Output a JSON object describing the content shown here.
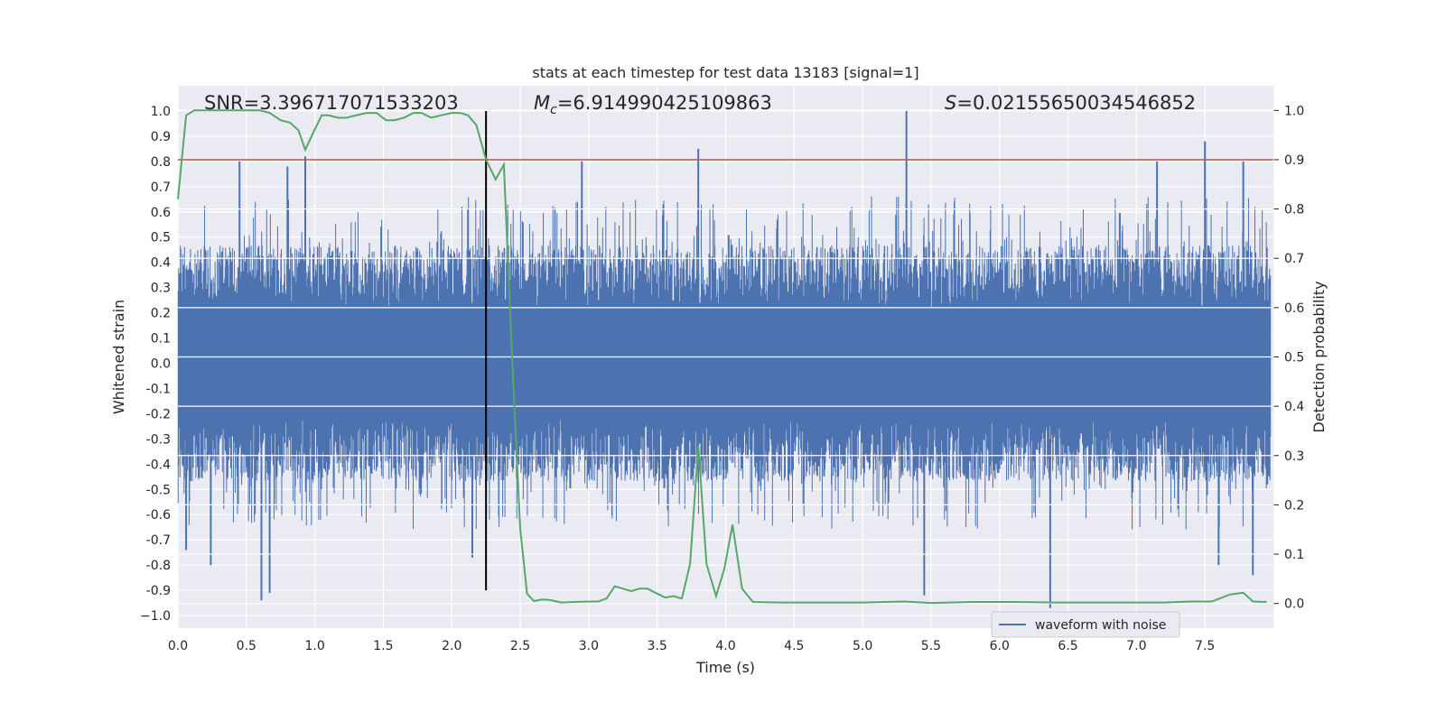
{
  "chart_data": {
    "type": "line",
    "title": "stats at each timestep for test data 13183 [signal=1]",
    "xlabel": "Time (s)",
    "ylabel": "Whitened strain",
    "y2label": "Detection probability",
    "xlim": [
      0,
      8
    ],
    "ylim": [
      -1.05,
      1.1
    ],
    "y2lim": [
      -0.05,
      1.05
    ],
    "x_ticks": [
      0.0,
      0.5,
      1.0,
      1.5,
      2.0,
      2.5,
      3.0,
      3.5,
      4.0,
      4.5,
      5.0,
      5.5,
      6.0,
      6.5,
      7.0,
      7.5
    ],
    "x_tick_labels": [
      "0.0",
      "0.5",
      "1.0",
      "1.5",
      "2.0",
      "2.5",
      "3.0",
      "3.5",
      "4.0",
      "4.5",
      "5.0",
      "5.5",
      "6.0",
      "6.5",
      "7.0",
      "7.5"
    ],
    "y_ticks": [
      1.0,
      0.9,
      0.8,
      0.7,
      0.6,
      0.5,
      0.4,
      0.3,
      0.2,
      0.1,
      0.0,
      -0.1,
      -0.2,
      -0.3,
      -0.4,
      -0.5,
      -0.6,
      -0.7,
      -0.8,
      -0.9,
      -1.0
    ],
    "y_tick_labels": [
      "1.0",
      "0.9",
      "0.8",
      "0.7",
      "0.6",
      "0.5",
      "0.4",
      "0.3",
      "0.2",
      "0.1",
      "0.0",
      "-0.1",
      "-0.2",
      "-0.3",
      "-0.4",
      "-0.5",
      "-0.6",
      "-0.7",
      "-0.8",
      "-0.9",
      "−1.0"
    ],
    "y2_ticks": [
      1.0,
      0.9,
      0.8,
      0.7,
      0.6,
      0.5,
      0.4,
      0.3,
      0.2,
      0.1,
      0.0
    ],
    "y2_tick_labels": [
      "1.0",
      "0.9",
      "0.8",
      "0.7",
      "0.6",
      "0.5",
      "0.4",
      "0.3",
      "0.2",
      "0.1",
      "0.0"
    ],
    "annotations": {
      "snr": "SNR=3.396717071533203",
      "mc_symbol": "M",
      "mc_sub": "c",
      "mc_value": "=6.914990425109863",
      "s_symbol": "S",
      "s_value": "=0.021556500345468 52"
    },
    "threshold_line": {
      "axis": "y2",
      "value": 0.9,
      "color": "#c44e52"
    },
    "merger_line": {
      "x": 2.25,
      "y_from": -0.9,
      "y_to": 1.0,
      "color": "#000000"
    },
    "series": [
      {
        "name": "waveform with noise",
        "axis": "y",
        "color": "#4c72b0",
        "style": "noise",
        "envelope": 0.45,
        "notable_peaks": [
          {
            "x": 0.45,
            "y": 0.8
          },
          {
            "x": 0.8,
            "y": 0.78
          },
          {
            "x": 0.93,
            "y": 0.82
          },
          {
            "x": 2.95,
            "y": 0.8
          },
          {
            "x": 3.8,
            "y": 0.85
          },
          {
            "x": 5.32,
            "y": 1.0
          },
          {
            "x": 7.15,
            "y": 0.8
          },
          {
            "x": 7.5,
            "y": 0.88
          },
          {
            "x": 7.78,
            "y": 0.8
          }
        ],
        "notable_troughs": [
          {
            "x": 0.06,
            "y": -0.74
          },
          {
            "x": 0.24,
            "y": -0.8
          },
          {
            "x": 0.61,
            "y": -0.94
          },
          {
            "x": 0.67,
            "y": -0.91
          },
          {
            "x": 2.15,
            "y": -0.77
          },
          {
            "x": 5.45,
            "y": -0.92
          },
          {
            "x": 6.37,
            "y": -0.97
          },
          {
            "x": 7.6,
            "y": -0.8
          },
          {
            "x": 7.85,
            "y": -0.84
          }
        ]
      },
      {
        "name": "detection probability",
        "axis": "y2",
        "color": "#55a868",
        "x": [
          0.0,
          0.06,
          0.12,
          0.2,
          0.3,
          0.4,
          0.5,
          0.6,
          0.67,
          0.75,
          0.82,
          0.88,
          0.93,
          0.98,
          1.05,
          1.1,
          1.17,
          1.23,
          1.3,
          1.38,
          1.45,
          1.52,
          1.58,
          1.65,
          1.72,
          1.78,
          1.85,
          1.92,
          2.0,
          2.06,
          2.12,
          2.18,
          2.25,
          2.32,
          2.38,
          2.44,
          2.5,
          2.55,
          2.6,
          2.66,
          2.72,
          2.8,
          2.9,
          3.0,
          3.07,
          3.13,
          3.19,
          3.25,
          3.31,
          3.37,
          3.43,
          3.5,
          3.56,
          3.62,
          3.68,
          3.74,
          3.8,
          3.86,
          3.93,
          3.99,
          4.05,
          4.12,
          4.2,
          4.4,
          4.7,
          5.0,
          5.3,
          5.5,
          5.8,
          6.1,
          6.4,
          6.7,
          7.0,
          7.2,
          7.4,
          7.55,
          7.68,
          7.78,
          7.85,
          7.95
        ],
        "y": [
          0.82,
          0.99,
          1.0,
          1.0,
          1.0,
          1.0,
          1.0,
          1.0,
          0.995,
          0.98,
          0.975,
          0.96,
          0.92,
          0.95,
          0.99,
          0.99,
          0.985,
          0.985,
          0.99,
          0.995,
          0.995,
          0.98,
          0.98,
          0.985,
          0.995,
          0.995,
          0.985,
          0.99,
          0.995,
          0.995,
          0.99,
          0.97,
          0.9,
          0.86,
          0.89,
          0.5,
          0.15,
          0.02,
          0.005,
          0.008,
          0.007,
          0.002,
          0.003,
          0.004,
          0.004,
          0.01,
          0.035,
          0.03,
          0.025,
          0.03,
          0.03,
          0.02,
          0.012,
          0.015,
          0.01,
          0.08,
          0.32,
          0.08,
          0.015,
          0.07,
          0.16,
          0.03,
          0.003,
          0.002,
          0.002,
          0.002,
          0.004,
          0.001,
          0.003,
          0.003,
          0.002,
          0.002,
          0.002,
          0.002,
          0.004,
          0.004,
          0.018,
          0.022,
          0.004,
          0.003
        ]
      }
    ],
    "legend": {
      "placement": "lower-right",
      "entries": [
        "waveform with noise"
      ]
    }
  }
}
